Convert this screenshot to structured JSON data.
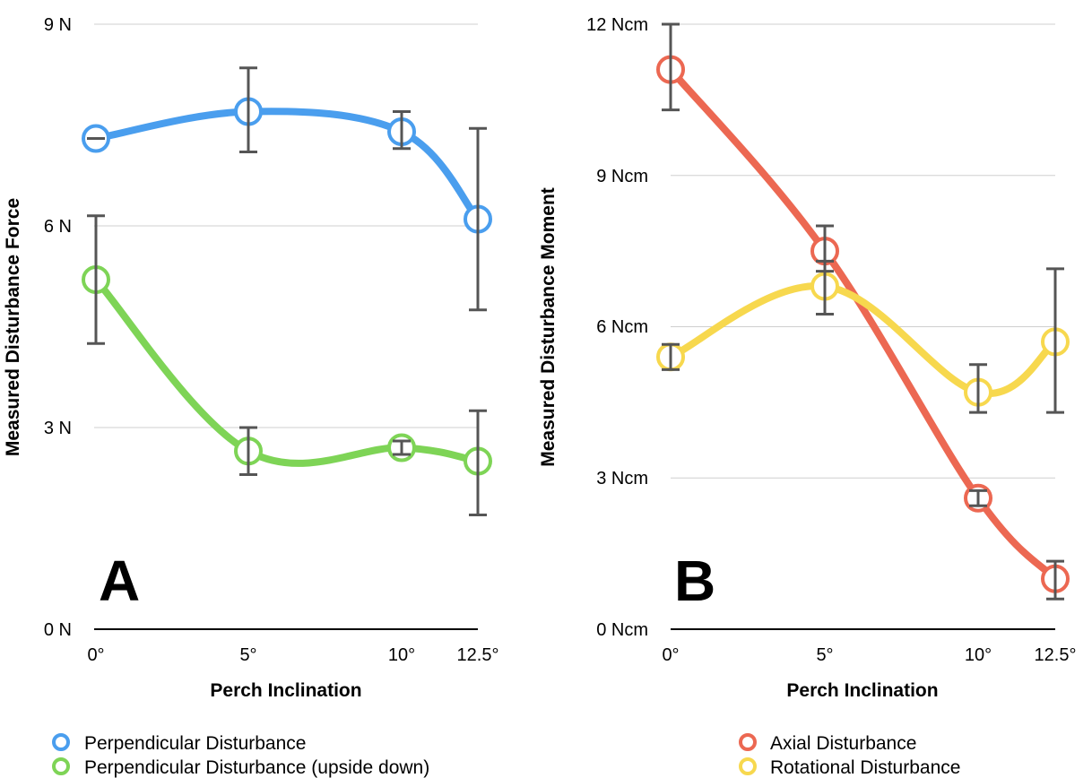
{
  "chart_data": [
    {
      "type": "line",
      "panel_label": "A",
      "xlabel": "Perch Inclination",
      "ylabel": "Measured Disturbance Force",
      "categories": [
        "0°",
        "5°",
        "10°",
        "12.5°"
      ],
      "x": [
        0,
        5,
        10,
        12.5
      ],
      "ylim": [
        0,
        9
      ],
      "y_ticks": [
        0,
        3,
        6,
        9
      ],
      "y_tick_labels": [
        "0 N",
        "3 N",
        "6 N",
        "9 N"
      ],
      "grid": true,
      "legend_position": "bottom-left",
      "series": [
        {
          "name": "Perpendicular Disturbance",
          "color": "#4A9EEE",
          "values": [
            7.3,
            7.7,
            7.4,
            6.1
          ],
          "error_low": [
            7.3,
            7.1,
            7.15,
            4.75
          ],
          "error_high": [
            7.3,
            8.35,
            7.7,
            7.45
          ]
        },
        {
          "name": "Perpendicular Disturbance (upside down)",
          "color": "#7ED456",
          "values": [
            5.2,
            2.65,
            2.7,
            2.5
          ],
          "error_low": [
            4.25,
            2.3,
            2.6,
            1.7
          ],
          "error_high": [
            6.15,
            3.0,
            2.8,
            3.25
          ]
        }
      ]
    },
    {
      "type": "line",
      "panel_label": "B",
      "xlabel": "Perch Inclination",
      "ylabel": "Measured Disturbance Moment",
      "categories": [
        "0°",
        "5°",
        "10°",
        "12.5°"
      ],
      "x": [
        0,
        5,
        10,
        12.5
      ],
      "ylim": [
        0,
        12
      ],
      "y_ticks": [
        0,
        3,
        6,
        9,
        12
      ],
      "y_tick_labels": [
        "0 Ncm",
        "3 Ncm",
        "6 Ncm",
        "9 Ncm",
        "12 Ncm"
      ],
      "grid": true,
      "legend_position": "bottom-right",
      "series": [
        {
          "name": "Axial Disturbance",
          "color": "#EC6852",
          "values": [
            11.1,
            7.5,
            2.6,
            1.0
          ],
          "error_low": [
            10.3,
            7.1,
            2.45,
            0.6
          ],
          "error_high": [
            12.0,
            8.0,
            2.75,
            1.35
          ]
        },
        {
          "name": "Rotational Disturbance",
          "color": "#F7D84E",
          "values": [
            5.4,
            6.8,
            4.7,
            5.7
          ],
          "error_low": [
            5.15,
            6.25,
            4.3,
            4.3
          ],
          "error_high": [
            5.65,
            7.3,
            5.25,
            7.15
          ]
        }
      ]
    }
  ]
}
